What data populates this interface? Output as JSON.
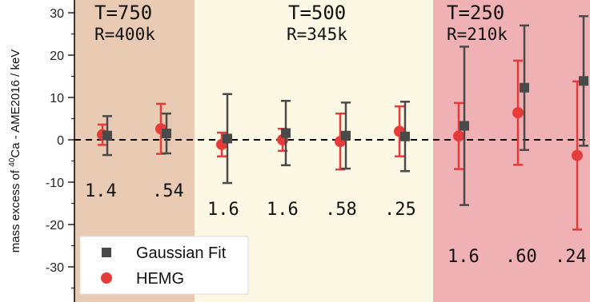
{
  "chart_data": {
    "type": "scatter",
    "ylabel_prefix": "mass excess of ",
    "ylabel_sup": "40",
    "ylabel_suffix": "Ca - AME2016 / keV",
    "ylim": [
      -38,
      32
    ],
    "yticks": [
      {
        "value": 30,
        "label": "30"
      },
      {
        "value": 20,
        "label": "20"
      },
      {
        "value": 10,
        "label": "10"
      },
      {
        "value": 0,
        "label": "0"
      },
      {
        "value": -10,
        "label": "-10"
      },
      {
        "value": -20,
        "label": "-20"
      },
      {
        "value": -30,
        "label": "-30"
      }
    ],
    "reference_line": 0,
    "regions": [
      {
        "t_label": "T=750",
        "r_label": "R=400k",
        "color": "#e8cbb2"
      },
      {
        "t_label": "T=500",
        "r_label": "R=345k",
        "color": "#fcf8e4"
      },
      {
        "t_label": "T=250",
        "r_label": "R=210k",
        "color": "#efb1b3"
      }
    ],
    "series": [
      {
        "name": "Gaussian Fit",
        "color": "#4a4a4a",
        "marker": "square",
        "points": [
          {
            "y": 1.0,
            "yerr": 4.6
          },
          {
            "y": 1.5,
            "yerr": 4.7
          },
          {
            "y": 0.3,
            "yerr": 10.5
          },
          {
            "y": 1.6,
            "yerr": 7.6
          },
          {
            "y": 1.0,
            "yerr": 7.8
          },
          {
            "y": 0.8,
            "yerr": 8.2
          },
          {
            "y": 3.3,
            "yerr": 18.7
          },
          {
            "y": 12.3,
            "yerr": 14.7
          },
          {
            "y": 13.9,
            "yerr": 15.3
          }
        ]
      },
      {
        "name": "HEMG",
        "color": "#e63b3b",
        "marker": "circle",
        "points": [
          {
            "y": 1.2,
            "yerr": 2.4
          },
          {
            "y": 2.6,
            "yerr": 5.9
          },
          {
            "y": -1.1,
            "yerr": 2.8
          },
          {
            "y": 0.0,
            "yerr": 2.6
          },
          {
            "y": -0.4,
            "yerr": 6.6
          },
          {
            "y": 2.0,
            "yerr": 5.9
          },
          {
            "y": 0.9,
            "yerr": 7.8
          },
          {
            "y": 6.4,
            "yerr": 12.3
          },
          {
            "y": -3.7,
            "yerr": 17.5
          }
        ]
      }
    ],
    "ratio_labels": [
      ".54",
      "1.4",
      "1.6",
      "1.6",
      ".58",
      ".25",
      "1.6",
      ".60",
      ".24"
    ],
    "legend": [
      {
        "label": "Gaussian Fit",
        "marker": "square",
        "color": "#4a4a4a"
      },
      {
        "label": "HEMG",
        "marker": "circle",
        "color": "#e63b3b"
      }
    ],
    "legend_placement": "bottom-left"
  }
}
